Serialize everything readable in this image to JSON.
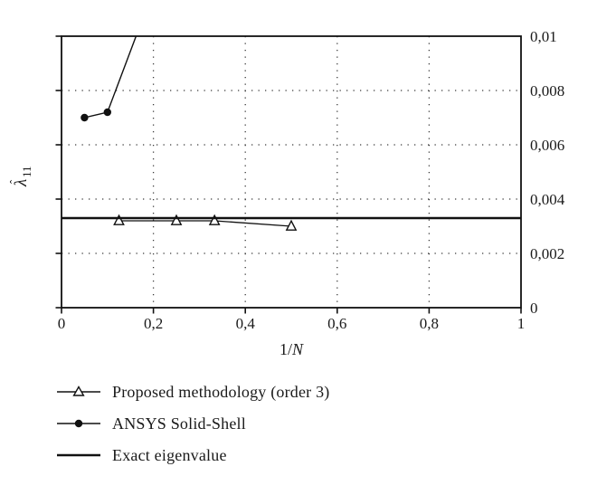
{
  "figure": {
    "background": "#ffffff",
    "ink_color": "#111111",
    "grid_color": "#3a3a3a",
    "text_color": "#1a1a1a"
  },
  "chart_data": {
    "type": "line",
    "title": "",
    "xlabel": "1/N",
    "ylabel": "λ̂11",
    "ylabel_parts": {
      "base": "λ",
      "accent": "ˆ",
      "subscript": "11"
    },
    "xlim": [
      0,
      1
    ],
    "ylim": [
      0,
      0.01
    ],
    "xticks": [
      0,
      0.2,
      0.4,
      0.6,
      0.8,
      1
    ],
    "xtick_labels": [
      "0",
      "0,2",
      "0,4",
      "0,6",
      "0,8",
      "1"
    ],
    "yticks": [
      0,
      0.002,
      0.004,
      0.006,
      0.008,
      0.01
    ],
    "ytick_labels": [
      "0",
      "0,002",
      "0,004",
      "0,006",
      "0,008",
      "0,01"
    ],
    "ytick_side": "right",
    "grid": "dotted",
    "legend_position": "below-left",
    "series": [
      {
        "name": "Proposed methodology (order 3)",
        "marker": "open-triangle",
        "line_width": 1.3,
        "points": [
          [
            0.125,
            0.0032
          ],
          [
            0.25,
            0.0032
          ],
          [
            0.333,
            0.0032
          ],
          [
            0.5,
            0.003
          ]
        ]
      },
      {
        "name": "ANSYS Solid-Shell",
        "marker": "filled-circle",
        "line_width": 1.4,
        "points": [
          [
            0.05,
            0.007
          ],
          [
            0.1,
            0.0072
          ],
          [
            0.2,
            0.0117
          ]
        ],
        "note": "last point lies above the visible axis range; line is clipped at the plot top"
      },
      {
        "name": "Exact eigenvalue",
        "marker": "none",
        "line_width": 2.4,
        "points": [
          [
            0,
            0.0033
          ],
          [
            1,
            0.0033
          ]
        ]
      }
    ]
  }
}
